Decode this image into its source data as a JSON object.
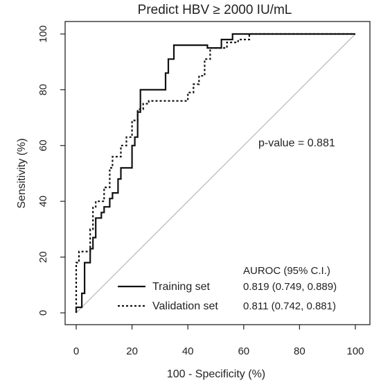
{
  "chart_data": {
    "type": "line",
    "title": "Predict HBV  ≥  2000 IU/mL",
    "xlabel": "100 - Specificity (%)",
    "ylabel": "Sensitivity (%)",
    "xlim": [
      0,
      100
    ],
    "ylim": [
      0,
      100
    ],
    "xticks": [
      "0",
      "20",
      "40",
      "60",
      "80",
      "100"
    ],
    "yticks": [
      "0",
      "20",
      "40",
      "60",
      "80",
      "100"
    ],
    "grid": false,
    "legend_position": "bottom-right",
    "reference_line": {
      "x": [
        0,
        100
      ],
      "y": [
        0,
        100
      ],
      "color": "#aaaaaa"
    },
    "annotation": "p-value = 0.881",
    "legend_header": "AUROC (95% C.I.)",
    "series": [
      {
        "name": "Training set",
        "auroc": "0.819 (0.749, 0.889)",
        "style": "solid",
        "color": "#111111",
        "x": [
          0,
          0,
          2,
          2,
          3,
          3,
          5,
          5,
          6,
          6,
          7,
          7,
          9,
          9,
          10,
          10,
          12,
          12,
          13,
          13,
          15,
          15,
          16,
          16,
          20,
          20,
          21,
          21,
          22,
          22,
          23,
          23,
          32,
          32,
          33,
          33,
          35,
          35,
          36,
          36,
          47,
          47,
          52,
          52,
          56,
          56,
          100
        ],
        "y": [
          0,
          2,
          2,
          7,
          7,
          18,
          18,
          23,
          23,
          27,
          27,
          34,
          34,
          36,
          36,
          38,
          38,
          41,
          41,
          43,
          43,
          48,
          48,
          52,
          52,
          60,
          60,
          63,
          63,
          72,
          72,
          80,
          80,
          86,
          86,
          91,
          91,
          96,
          96,
          96,
          96,
          95,
          95,
          98,
          98,
          100,
          100
        ]
      },
      {
        "name": "Validation set",
        "auroc": "0.811 (0.742, 0.881)",
        "style": "dotted",
        "color": "#111111",
        "x": [
          0,
          0,
          1,
          1,
          5,
          5,
          6,
          6,
          7,
          7,
          10,
          10,
          12,
          12,
          13,
          13,
          16,
          16,
          18,
          18,
          20,
          20,
          22,
          22,
          24,
          24,
          26,
          26,
          40,
          40,
          42,
          42,
          44,
          44,
          46,
          46,
          48,
          48,
          54,
          54,
          58,
          58,
          62,
          62,
          100
        ],
        "y": [
          0,
          18,
          18,
          22,
          22,
          30,
          30,
          38,
          38,
          40,
          40,
          45,
          45,
          52,
          52,
          56,
          56,
          60,
          60,
          63,
          63,
          69,
          69,
          73,
          73,
          75,
          75,
          76,
          76,
          79,
          79,
          82,
          82,
          85,
          85,
          91,
          91,
          95,
          95,
          97,
          97,
          98,
          98,
          100,
          100
        ]
      }
    ]
  }
}
